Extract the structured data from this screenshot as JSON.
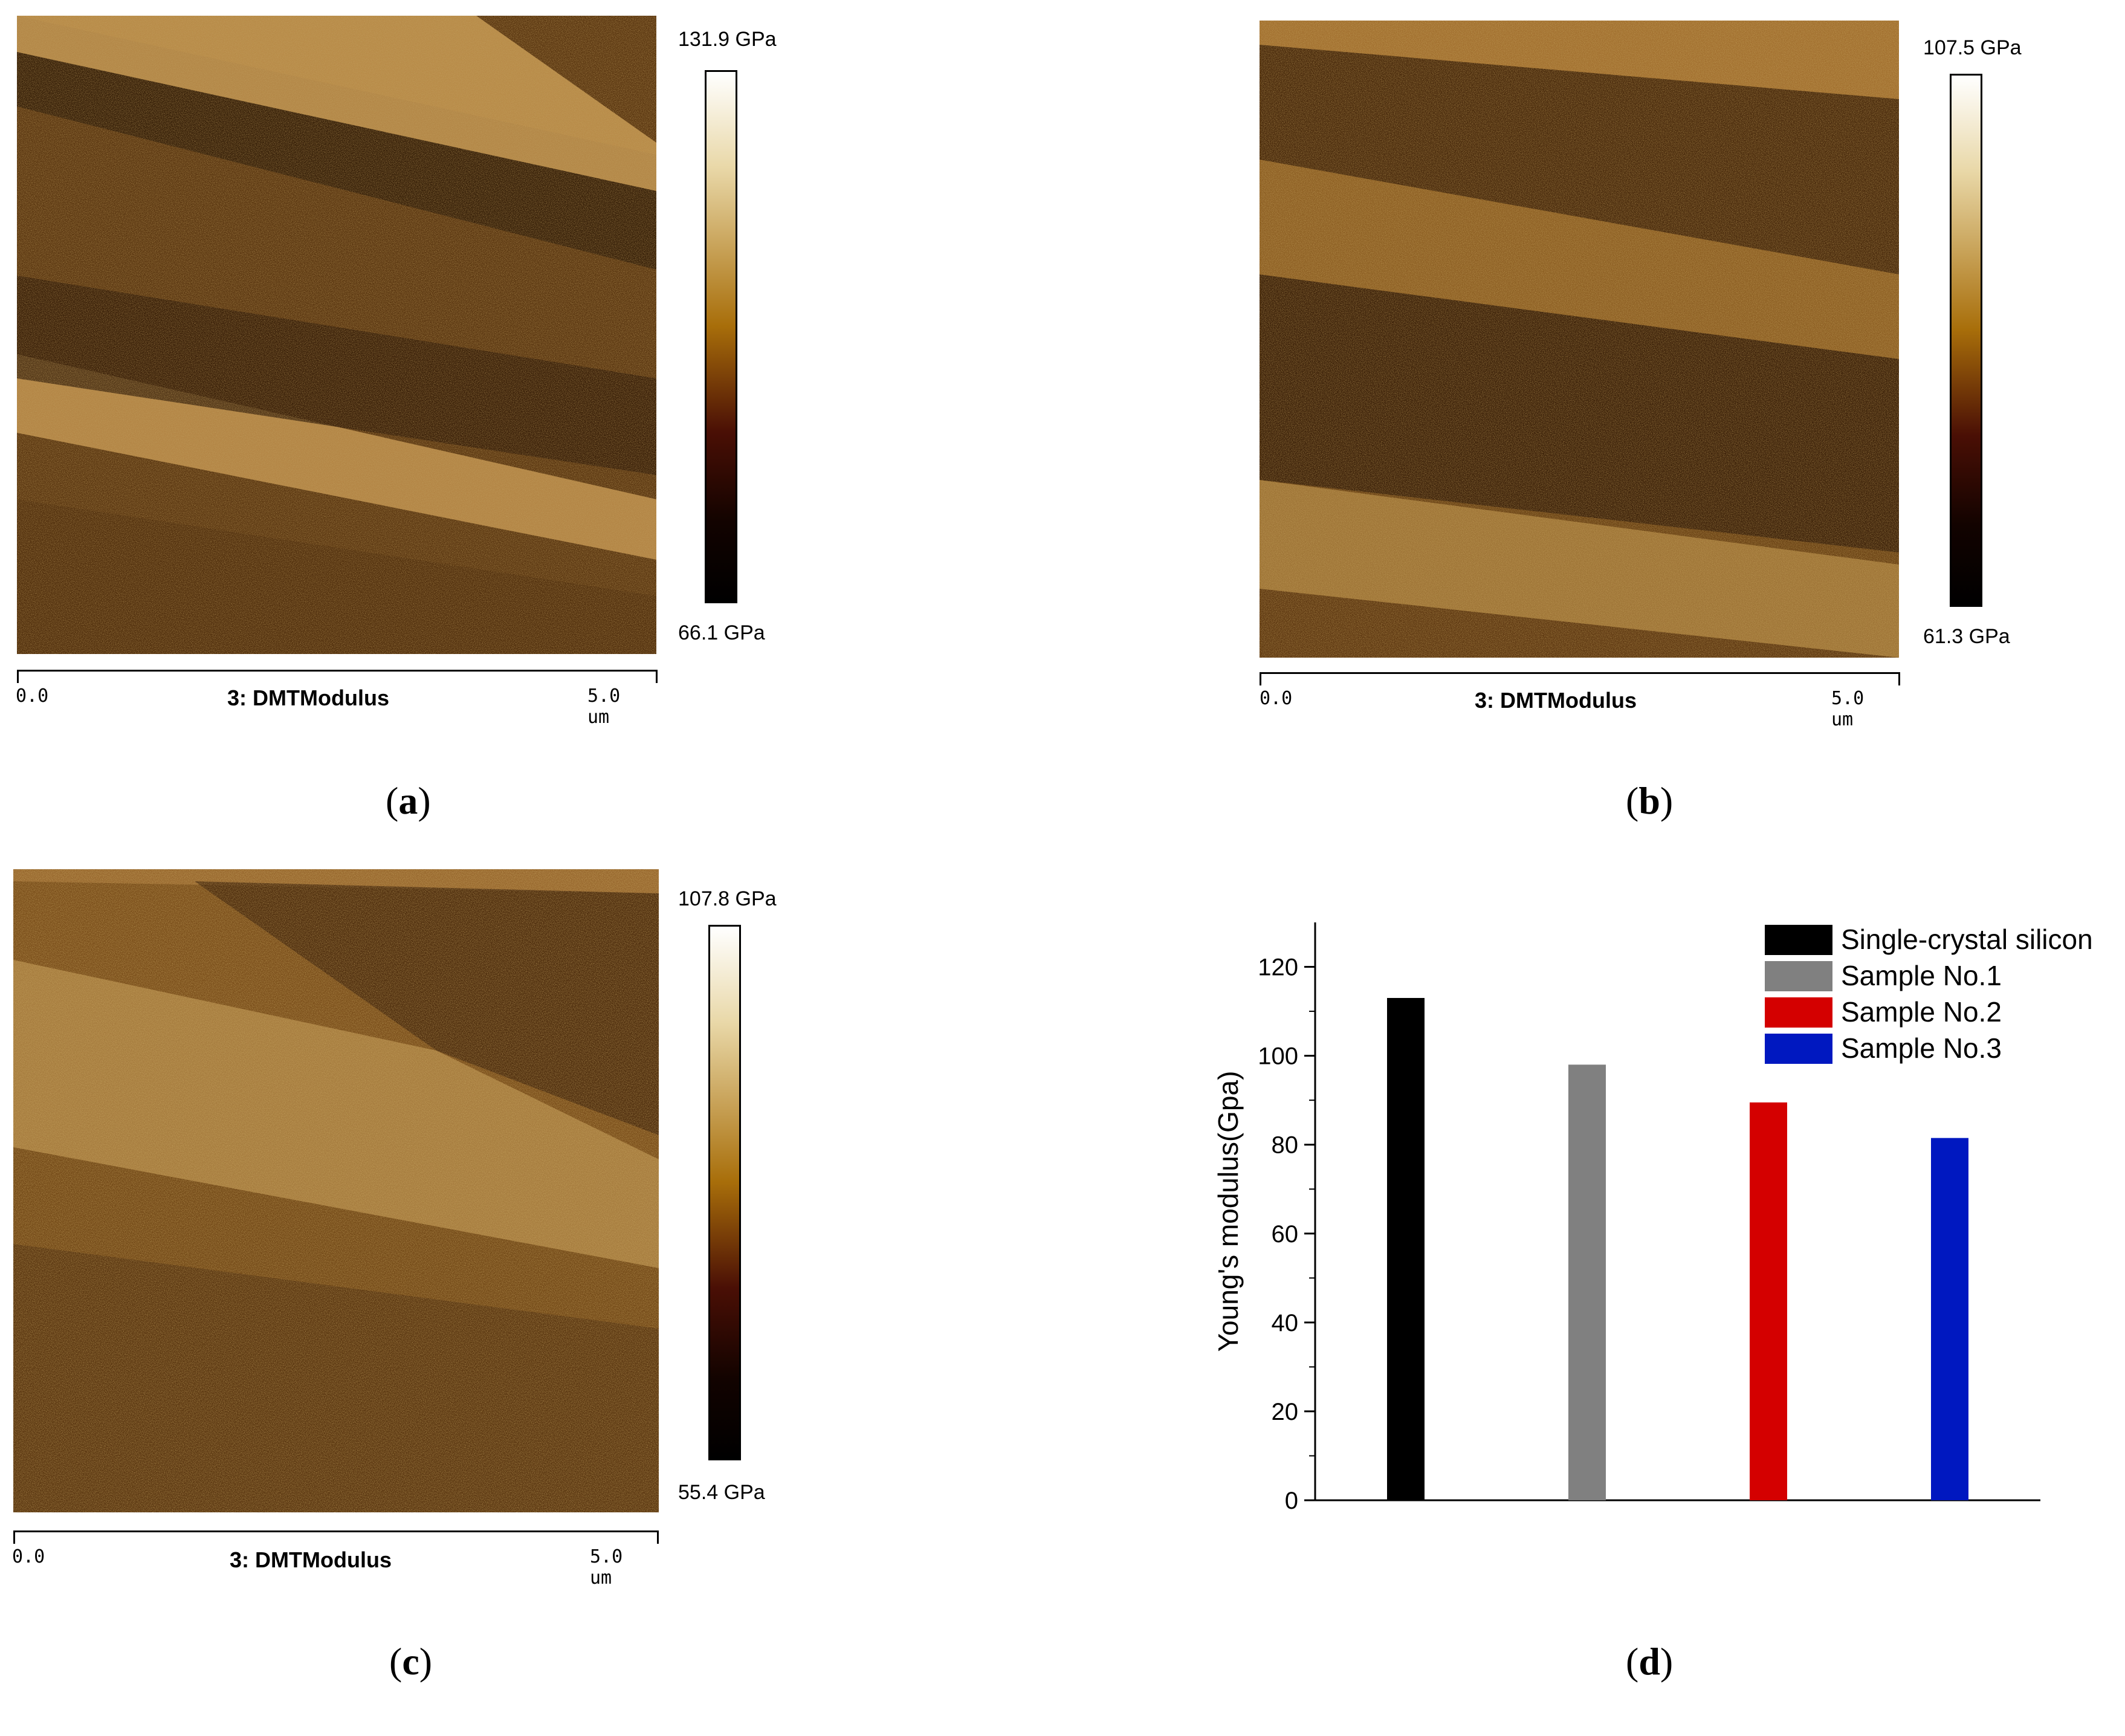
{
  "afm_panels": [
    {
      "id": "a",
      "label": "a",
      "cbar_max": "131.9 GPa",
      "cbar_min": "66.1 GPa",
      "scale_start": "0.0",
      "scale_end": "5.0 um",
      "channel": "3: DMTModulus"
    },
    {
      "id": "b",
      "label": "b",
      "cbar_max": "107.5 GPa",
      "cbar_min": "61.3 GPa",
      "scale_start": "0.0",
      "scale_end": "5.0 um",
      "channel": "3: DMTModulus"
    },
    {
      "id": "c",
      "label": "c",
      "cbar_max": "107.8 GPa",
      "cbar_min": "55.4 GPa",
      "scale_start": "0.0",
      "scale_end": "5.0 um",
      "channel": "3: DMTModulus"
    }
  ],
  "panel_d": {
    "label": "d"
  },
  "colors": {
    "afm_dark": "#1a0a02",
    "afm_mid": "#8a5418",
    "afm_light": "#f2e6c0",
    "cbar_top": "#ffffff",
    "cbar_gold": "#a86e0a",
    "cbar_red": "#4a0f05",
    "cbar_bottom": "#000000"
  },
  "chart_data": {
    "type": "bar",
    "categories": [
      "Single-crystal silicon",
      "Sample No.1",
      "Sample No.2",
      "Sample No.3"
    ],
    "values": [
      113,
      98,
      89.5,
      81.5
    ],
    "bar_colors": [
      "#000000",
      "#808080",
      "#d40000",
      "#0018c0"
    ],
    "title": "",
    "xlabel": "",
    "ylabel": "Young's modulus(Gpa)",
    "ylim": [
      0,
      130
    ],
    "yticks": [
      0,
      20,
      40,
      60,
      80,
      100,
      120
    ],
    "legend": [
      "Single-crystal silicon",
      "Sample No.1",
      "Sample No.2",
      "Sample No.3"
    ],
    "legend_position": "top-right",
    "grid": false
  }
}
